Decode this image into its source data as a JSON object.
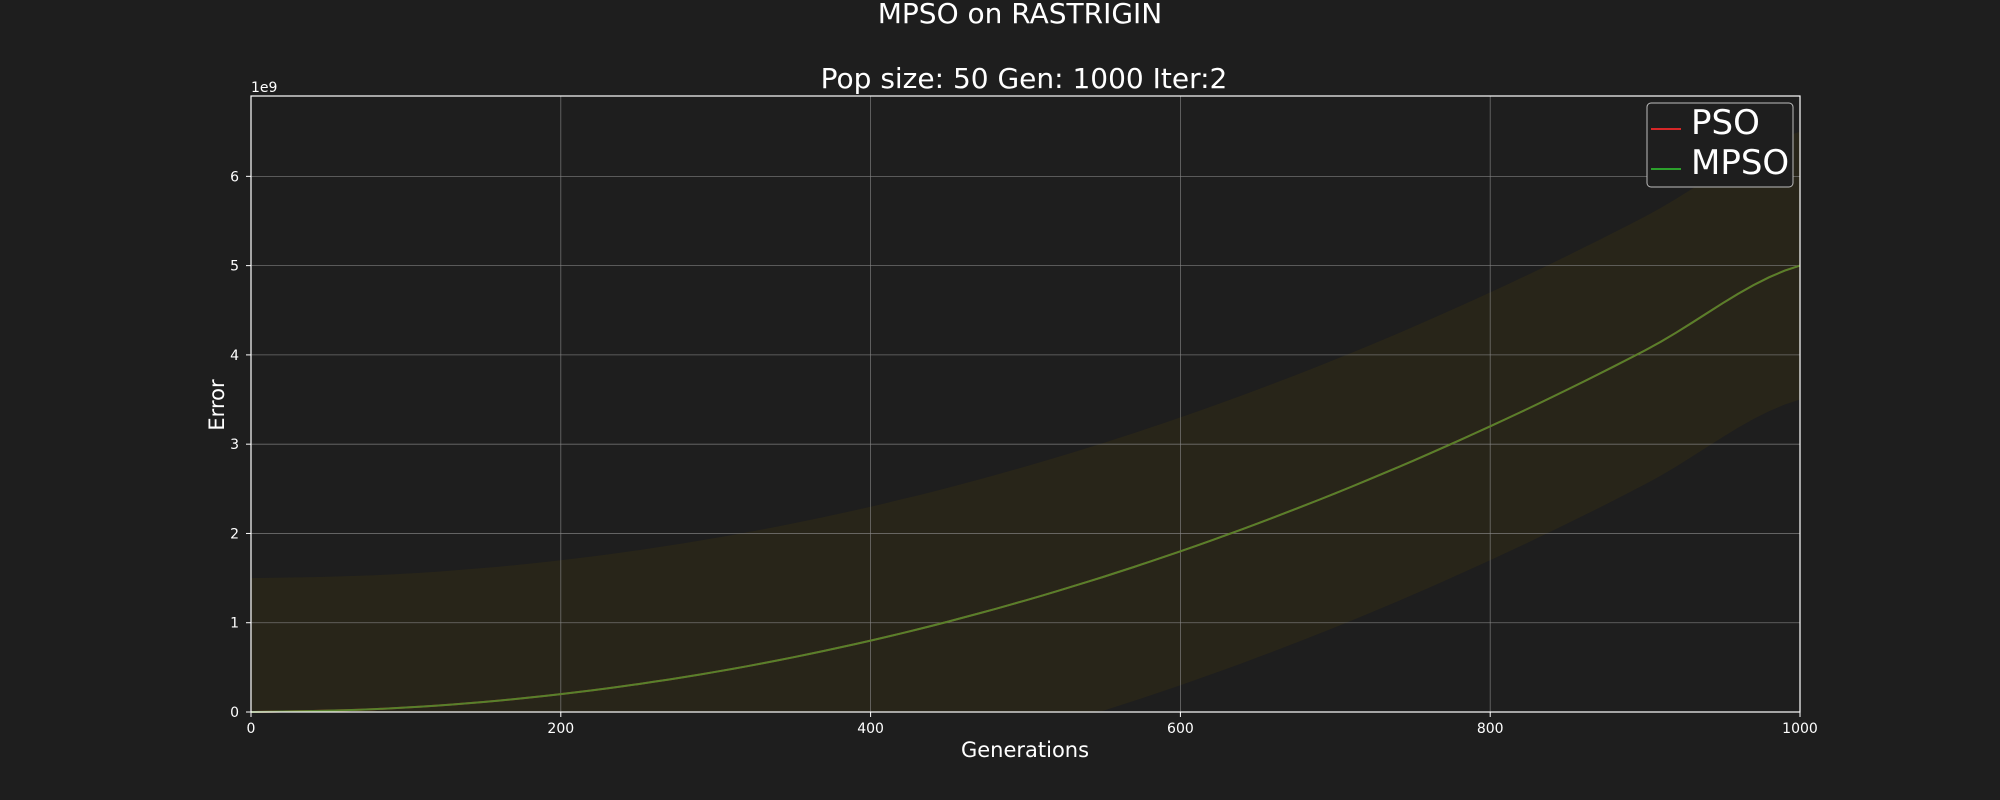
{
  "chart_data": {
    "type": "line",
    "title": "MPSO on RASTRIGIN",
    "subtitle": "Pop size: 50  Gen: 1000  Iter:2",
    "xlabel": "Generations",
    "ylabel": "Error",
    "y_offset_label": "1e9",
    "xlim": [
      0,
      1000
    ],
    "ylim": [
      0,
      6.9
    ],
    "y_scale_exponent": 9,
    "x_ticks": [
      0,
      200,
      400,
      600,
      800,
      1000
    ],
    "x_tick_labels": [
      "0",
      "200",
      "400",
      "600",
      "800",
      "1000"
    ],
    "y_ticks": [
      0,
      1,
      2,
      3,
      4,
      5,
      6
    ],
    "y_tick_labels": [
      "0",
      "1",
      "2",
      "3",
      "4",
      "5",
      "6"
    ],
    "grid": true,
    "legend_position": "top-right",
    "x": [
      0,
      100,
      200,
      300,
      400,
      500,
      600,
      700,
      800,
      900,
      1000
    ],
    "series": [
      {
        "name": "PSO",
        "color": "#d62728",
        "values": [
          0,
          0.05,
          0.2,
          0.45,
          0.8,
          1.25,
          1.8,
          2.45,
          3.2,
          4.05,
          5.0
        ],
        "band_upper": [
          1.5,
          1.55,
          1.7,
          1.95,
          2.3,
          2.75,
          3.3,
          3.95,
          4.7,
          5.55,
          6.5
        ],
        "band_lower": [
          -1.5,
          -1.45,
          -1.3,
          -1.05,
          -0.7,
          -0.25,
          0.3,
          0.95,
          1.7,
          2.55,
          3.5
        ]
      },
      {
        "name": "MPSO",
        "color": "#2ca02c",
        "values": [
          0,
          0.05,
          0.2,
          0.45,
          0.8,
          1.25,
          1.8,
          2.45,
          3.2,
          4.05,
          5.0
        ],
        "band_upper": [
          0,
          0.05,
          0.2,
          0.45,
          0.8,
          1.25,
          1.8,
          2.45,
          3.2,
          4.05,
          5.0
        ],
        "band_lower": [
          0,
          0.05,
          0.2,
          0.45,
          0.8,
          1.25,
          1.8,
          2.45,
          3.2,
          4.05,
          5.0
        ]
      }
    ],
    "colors": {
      "background": "#1e1e1e",
      "axes": "#ffffff",
      "grid": "#8a8a8a",
      "band": "#3b3410"
    }
  }
}
